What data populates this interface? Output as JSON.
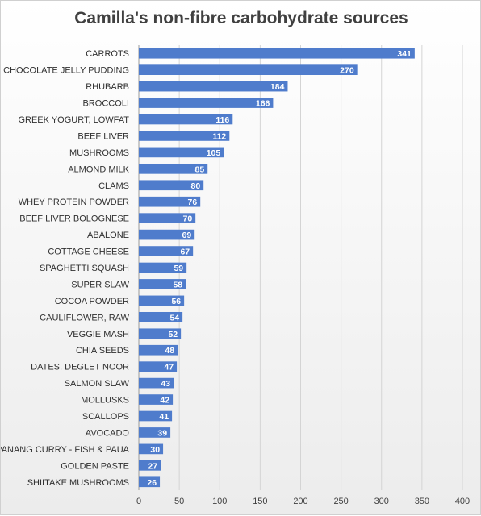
{
  "chart_data": {
    "type": "bar",
    "orientation": "horizontal",
    "title": "Camilla's non-fibre carbohydrate sources",
    "xlabel": "",
    "ylabel": "",
    "xlim": [
      0,
      400
    ],
    "x_ticks": [
      0,
      50,
      100,
      150,
      200,
      250,
      300,
      350,
      400
    ],
    "grid": true,
    "legend": "none",
    "bar_color": "#4f7ccc",
    "categories": [
      "CARROTS",
      "CHOCOLATE JELLY PUDDING",
      "RHUBARB",
      "BROCCOLI",
      "GREEK YOGURT, LOWFAT",
      "BEEF LIVER",
      "MUSHROOMS",
      "ALMOND MILK",
      "CLAMS",
      "WHEY PROTEIN POWDER",
      "BEEF LIVER BOLOGNESE",
      "ABALONE",
      "COTTAGE CHEESE",
      "SPAGHETTI SQUASH",
      "SUPER SLAW",
      "COCOA POWDER",
      "CAULIFLOWER, RAW",
      "VEGGIE MASH",
      "CHIA SEEDS",
      "DATES, DEGLET NOOR",
      "SALMON SLAW",
      "MOLLUSKS",
      "SCALLOPS",
      "AVOCADO",
      "PANANG CURRY - FISH & PAUA",
      "GOLDEN PASTE",
      "SHIITAKE MUSHROOMS"
    ],
    "values": [
      341,
      270,
      184,
      166,
      116,
      112,
      105,
      85,
      80,
      76,
      70,
      69,
      67,
      59,
      58,
      56,
      54,
      52,
      48,
      47,
      43,
      42,
      41,
      39,
      30,
      27,
      26
    ]
  }
}
